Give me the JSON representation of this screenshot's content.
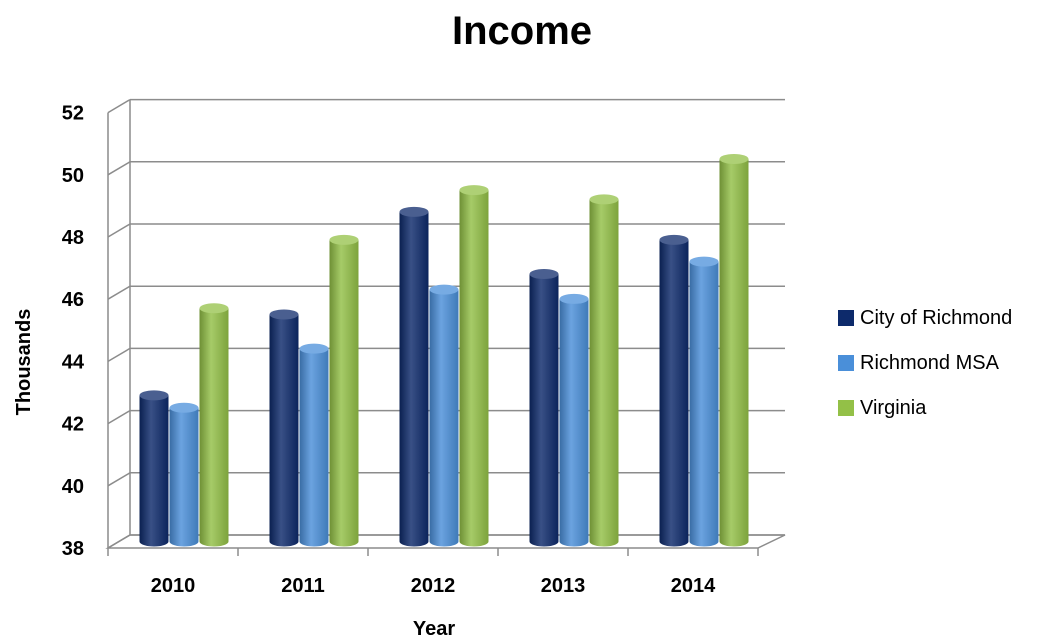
{
  "chart_data": {
    "type": "bar",
    "title": "Income",
    "xlabel": "Year",
    "ylabel": "Thousands",
    "categories": [
      "2010",
      "2011",
      "2012",
      "2013",
      "2014"
    ],
    "series": [
      {
        "name": "City of Richmond",
        "color": "#0d2a6b",
        "values": [
          42.7,
          45.3,
          48.6,
          46.6,
          47.7
        ]
      },
      {
        "name": "Richmond MSA",
        "color": "#4a8fd9",
        "values": [
          42.3,
          44.2,
          46.1,
          45.8,
          47.0
        ]
      },
      {
        "name": "Virginia",
        "color": "#93c047",
        "values": [
          45.5,
          47.7,
          49.3,
          49.0,
          50.3
        ]
      }
    ],
    "ylim": [
      38,
      52
    ],
    "yticks": [
      "38",
      "40",
      "42",
      "44",
      "46",
      "48",
      "50",
      "52"
    ],
    "grid": true,
    "legend": "right"
  }
}
